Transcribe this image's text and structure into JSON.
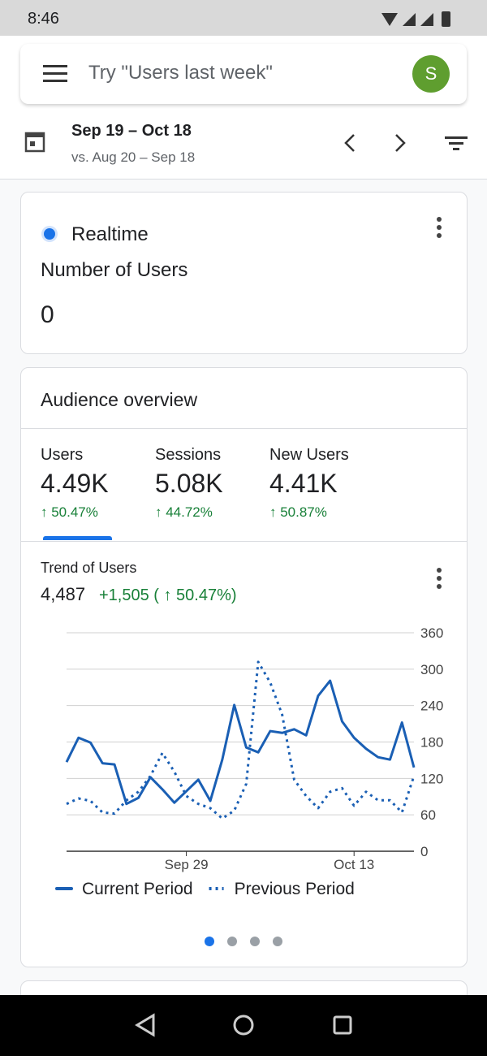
{
  "status_bar": {
    "time": "8:46"
  },
  "search": {
    "placeholder": "Try \"Users last week\"",
    "avatar": "S"
  },
  "date_range": {
    "range": "Sep 19 – Oct 18",
    "compare": "vs. Aug 20 – Sep 18"
  },
  "realtime": {
    "label": "Realtime",
    "metric": "Number of Users",
    "value": "0"
  },
  "audience": {
    "title": "Audience overview",
    "metrics": [
      {
        "name": "Users",
        "value": "4.49K",
        "change": "↑ 50.47%"
      },
      {
        "name": "Sessions",
        "value": "5.08K",
        "change": "↑ 44.72%"
      },
      {
        "name": "New Users",
        "value": "4.41K",
        "change": "↑ 50.87%"
      }
    ],
    "trend_title": "Trend of Users",
    "trend_total": "4,487",
    "trend_change": "+1,505 ( ↑ 50.47%)"
  },
  "chart_data": {
    "type": "line",
    "categories": [
      null,
      null,
      null,
      null,
      null,
      null,
      null,
      null,
      null,
      null,
      "Sep 29",
      null,
      null,
      null,
      null,
      null,
      null,
      null,
      null,
      null,
      null,
      null,
      null,
      null,
      "Oct 13",
      null,
      null,
      null,
      null,
      null
    ],
    "series": [
      {
        "name": "Current Period",
        "color": "#1a5fb4",
        "style": "solid",
        "values": [
          147,
          187,
          179,
          145,
          143,
          78,
          88,
          122,
          102,
          80,
          99,
          118,
          83,
          151,
          241,
          171,
          163,
          198,
          195,
          201,
          191,
          256,
          281,
          214,
          187,
          169,
          155,
          151,
          212,
          138
        ]
      },
      {
        "name": "Previous Period",
        "color": "#1a5fb4",
        "style": "dotted",
        "values": [
          78,
          87,
          83,
          64,
          62,
          84,
          98,
          124,
          162,
          131,
          91,
          78,
          71,
          54,
          67,
          111,
          312,
          278,
          225,
          118,
          91,
          71,
          98,
          104,
          75,
          98,
          84,
          84,
          64,
          124
        ]
      }
    ],
    "ylim": [
      0,
      360
    ],
    "yticks": [
      0,
      60,
      120,
      180,
      240,
      300,
      360
    ],
    "grid": true,
    "legend": "bottom"
  }
}
